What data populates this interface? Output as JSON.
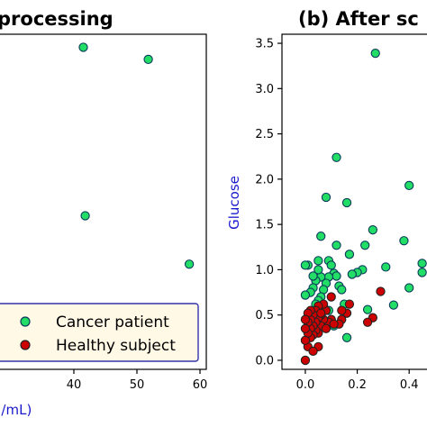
{
  "chart_data": [
    {
      "type": "scatter",
      "title": "processing",
      "xlabel": "J/mL)",
      "ylabel": "",
      "xlim": [
        28,
        61
      ],
      "ylim": [
        0,
        3.6
      ],
      "x_ticks": [
        {
          "v": 40,
          "label": "40"
        },
        {
          "v": 50,
          "label": "50"
        },
        {
          "v": 60,
          "label": "60"
        }
      ],
      "legend": {
        "placement": "lower-right",
        "border_color": "#3333aa",
        "entries": [
          {
            "label": "Cancer patient",
            "color": "#22dd66"
          },
          {
            "label": "Healthy subject",
            "color": "#cc0000"
          }
        ]
      },
      "series": [
        {
          "label_ref": 0,
          "color": "#22dd66",
          "points": [
            [
              41.5,
              3.46
            ],
            [
              51.8,
              3.33
            ],
            [
              41.8,
              1.65
            ],
            [
              58.3,
              1.13
            ],
            [
              36.8,
              0.65
            ]
          ]
        }
      ]
    },
    {
      "type": "scatter",
      "title": "(b) After sc",
      "xlabel": "",
      "ylabel": "Glucose",
      "xlim": [
        -0.09,
        0.5
      ],
      "ylim": [
        -0.1,
        3.6
      ],
      "x_ticks": [
        {
          "v": 0.0,
          "label": "0.0"
        },
        {
          "v": 0.2,
          "label": "0.2"
        },
        {
          "v": 0.4,
          "label": "0.4"
        }
      ],
      "y_ticks": [
        {
          "v": 0.0,
          "label": "0.0"
        },
        {
          "v": 0.5,
          "label": "0.5"
        },
        {
          "v": 1.0,
          "label": "1.0"
        },
        {
          "v": 1.5,
          "label": "1.5"
        },
        {
          "v": 2.0,
          "label": "2.0"
        },
        {
          "v": 2.5,
          "label": "2.5"
        },
        {
          "v": 3.0,
          "label": "3.0"
        },
        {
          "v": 3.5,
          "label": "3.5"
        }
      ],
      "series": [
        {
          "color": "#22dd66",
          "points": [
            [
              0.27,
              3.39
            ],
            [
              0.12,
              2.24
            ],
            [
              0.08,
              1.8
            ],
            [
              0.16,
              1.74
            ],
            [
              0.4,
              1.93
            ],
            [
              0.26,
              1.44
            ],
            [
              0.38,
              1.32
            ],
            [
              0.06,
              1.37
            ],
            [
              0.45,
              1.07
            ],
            [
              0.45,
              0.97
            ],
            [
              0.4,
              0.8
            ],
            [
              0.34,
              0.61
            ],
            [
              0.31,
              1.03
            ],
            [
              0.23,
              1.27
            ],
            [
              0.17,
              1.17
            ],
            [
              0.22,
              1.0
            ],
            [
              0.2,
              0.97
            ],
            [
              0.18,
              0.95
            ],
            [
              0.12,
              1.27
            ],
            [
              0.09,
              1.1
            ],
            [
              0.1,
              1.05
            ],
            [
              0.11,
              0.96
            ],
            [
              0.12,
              0.93
            ],
            [
              0.13,
              0.82
            ],
            [
              0.14,
              0.78
            ],
            [
              0.09,
              0.92
            ],
            [
              0.08,
              0.85
            ],
            [
              0.07,
              0.78
            ],
            [
              0.06,
              0.92
            ],
            [
              0.05,
              1.1
            ],
            [
              0.05,
              1.0
            ],
            [
              0.04,
              0.88
            ],
            [
              0.03,
              0.8
            ],
            [
              0.02,
              0.75
            ],
            [
              0.01,
              1.05
            ],
            [
              0.0,
              1.05
            ],
            [
              0.0,
              0.72
            ],
            [
              0.03,
              0.93
            ],
            [
              0.06,
              0.7
            ],
            [
              0.05,
              0.66
            ],
            [
              0.04,
              0.62
            ],
            [
              0.07,
              0.58
            ],
            [
              0.09,
              0.55
            ],
            [
              0.15,
              0.62
            ],
            [
              0.24,
              0.56
            ],
            [
              0.16,
              0.25
            ],
            [
              0.11,
              0.38
            ],
            [
              0.02,
              0.35
            ],
            [
              0.01,
              0.48
            ]
          ]
        },
        {
          "color": "#cc0000",
          "points": [
            [
              0.29,
              0.76
            ],
            [
              0.26,
              0.47
            ],
            [
              0.24,
              0.42
            ],
            [
              0.17,
              0.62
            ],
            [
              0.16,
              0.52
            ],
            [
              0.14,
              0.55
            ],
            [
              0.14,
              0.45
            ],
            [
              0.13,
              0.4
            ],
            [
              0.1,
              0.7
            ],
            [
              0.1,
              0.45
            ],
            [
              0.09,
              0.42
            ],
            [
              0.08,
              0.55
            ],
            [
              0.07,
              0.62
            ],
            [
              0.07,
              0.45
            ],
            [
              0.06,
              0.5
            ],
            [
              0.06,
              0.38
            ],
            [
              0.05,
              0.3
            ],
            [
              0.05,
              0.6
            ],
            [
              0.05,
              0.47
            ],
            [
              0.04,
              0.55
            ],
            [
              0.04,
              0.42
            ],
            [
              0.04,
              0.33
            ],
            [
              0.03,
              0.5
            ],
            [
              0.03,
              0.38
            ],
            [
              0.03,
              0.28
            ],
            [
              0.02,
              0.55
            ],
            [
              0.02,
              0.45
            ],
            [
              0.02,
              0.35
            ],
            [
              0.02,
              0.25
            ],
            [
              0.01,
              0.52
            ],
            [
              0.01,
              0.42
            ],
            [
              0.01,
              0.3
            ],
            [
              0.01,
              0.15
            ],
            [
              0.0,
              0.45
            ],
            [
              0.0,
              0.35
            ],
            [
              0.0,
              0.22
            ],
            [
              0.0,
              0.0
            ],
            [
              0.05,
              0.15
            ],
            [
              0.03,
              0.1
            ],
            [
              0.08,
              0.35
            ],
            [
              0.11,
              0.4
            ],
            [
              0.06,
              0.52
            ]
          ]
        }
      ]
    }
  ]
}
